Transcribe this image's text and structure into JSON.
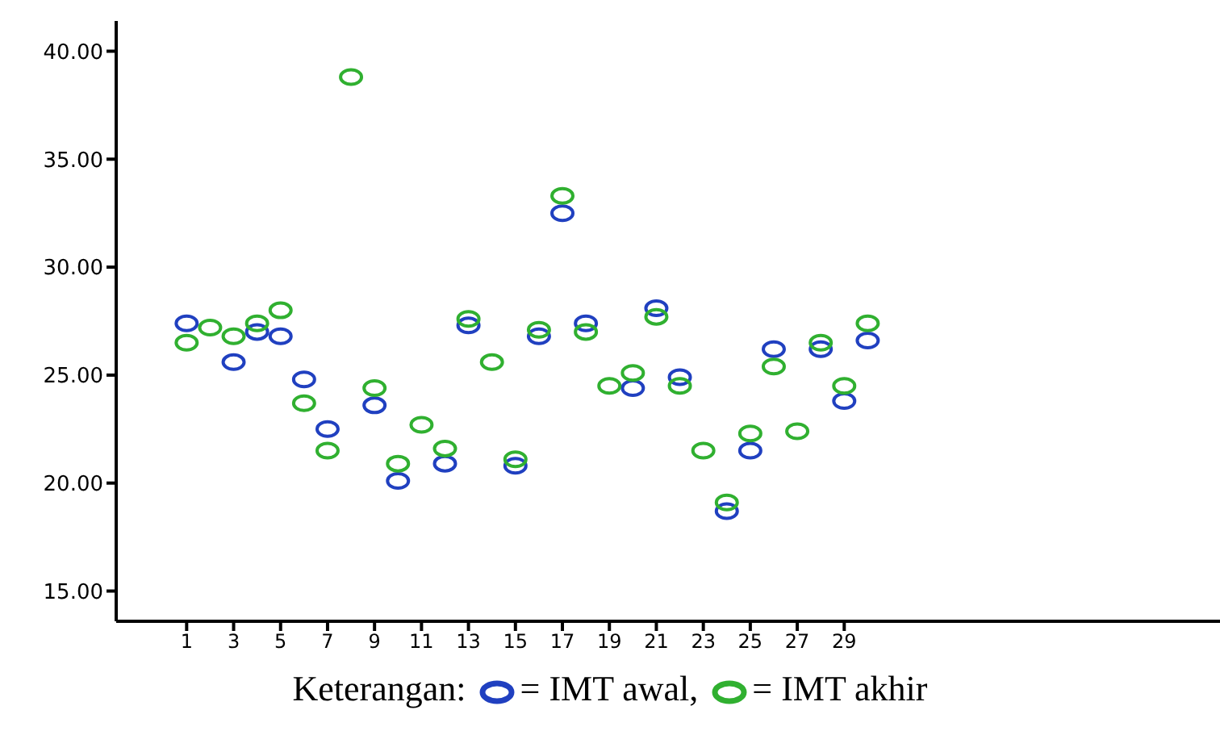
{
  "chart_data": {
    "type": "scatter",
    "legend_title": "Keterangan:",
    "x": [
      1,
      2,
      3,
      4,
      5,
      6,
      7,
      8,
      9,
      10,
      11,
      12,
      13,
      14,
      15,
      16,
      17,
      18,
      19,
      20,
      21,
      22,
      23,
      24,
      25,
      26,
      27,
      28,
      29,
      30
    ],
    "series": [
      {
        "name": "= IMT awal,",
        "color": "#2040c0",
        "values": [
          27.4,
          null,
          25.6,
          27.0,
          26.8,
          24.8,
          22.5,
          null,
          23.6,
          20.1,
          null,
          20.9,
          27.3,
          null,
          20.8,
          26.8,
          32.5,
          27.4,
          null,
          24.4,
          28.1,
          24.9,
          null,
          18.7,
          21.5,
          26.2,
          null,
          26.2,
          23.8,
          26.6
        ]
      },
      {
        "name": "= IMT akhir",
        "color": "#30b030",
        "values": [
          26.5,
          27.2,
          26.8,
          27.4,
          28.0,
          23.7,
          21.5,
          38.8,
          24.4,
          20.9,
          22.7,
          21.6,
          27.6,
          25.6,
          21.1,
          27.1,
          33.3,
          27.0,
          24.5,
          25.1,
          27.7,
          24.5,
          21.5,
          19.1,
          22.3,
          25.4,
          22.4,
          26.5,
          24.5,
          27.4
        ]
      }
    ],
    "xlim": [
      -2,
      45
    ],
    "xticks": [
      1,
      3,
      5,
      7,
      9,
      11,
      13,
      15,
      17,
      19,
      21,
      23,
      25,
      27,
      29
    ],
    "ylim": [
      13.6,
      41.4
    ],
    "yticks": [
      {
        "value": 15,
        "label": "15.00"
      },
      {
        "value": 20,
        "label": "20.00"
      },
      {
        "value": 25,
        "label": "25.00"
      },
      {
        "value": 30,
        "label": "30.00"
      },
      {
        "value": 35,
        "label": "35.00"
      },
      {
        "value": 40,
        "label": "40.00"
      }
    ],
    "marker": "circle",
    "legend": "bottom",
    "grid": false
  }
}
